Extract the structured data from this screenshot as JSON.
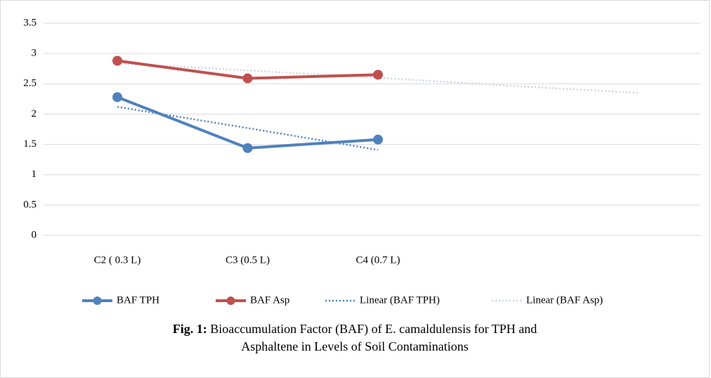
{
  "chart_data": {
    "type": "line",
    "categories": [
      "C2 ( 0.3 L)",
      "C3 (0.5 L)",
      "C4 (0.7 L)",
      null,
      null
    ],
    "series": [
      {
        "name": "BAF TPH",
        "color": "#4f81bd",
        "style": "solid",
        "values": [
          2.28,
          1.44,
          1.58,
          null,
          null
        ]
      },
      {
        "name": "BAF Asp",
        "color": "#c0504d",
        "style": "solid",
        "values": [
          2.88,
          2.59,
          2.65,
          null,
          null
        ]
      },
      {
        "name": "Linear (BAF TPH)",
        "color": "#4f81bd",
        "style": "dotted",
        "values": [
          2.12,
          1.77,
          1.41,
          null,
          null
        ]
      },
      {
        "name": "Linear (BAF Asp)",
        "color": "#cdd5e4",
        "style": "dotted",
        "values": [
          2.84,
          2.72,
          2.6,
          2.47,
          2.35
        ]
      }
    ],
    "ylim": [
      0,
      3.5
    ],
    "yticks": [
      0,
      0.5,
      1,
      1.5,
      2,
      2.5,
      3,
      3.5
    ],
    "grid": true,
    "legend": "bottom",
    "caption": {
      "label": "Fig. 1:",
      "lines": [
        "Bioaccumulation Factor (BAF) of E. camaldulensis for TPH and",
        "Asphaltene in Levels of Soil Contaminations"
      ]
    }
  }
}
